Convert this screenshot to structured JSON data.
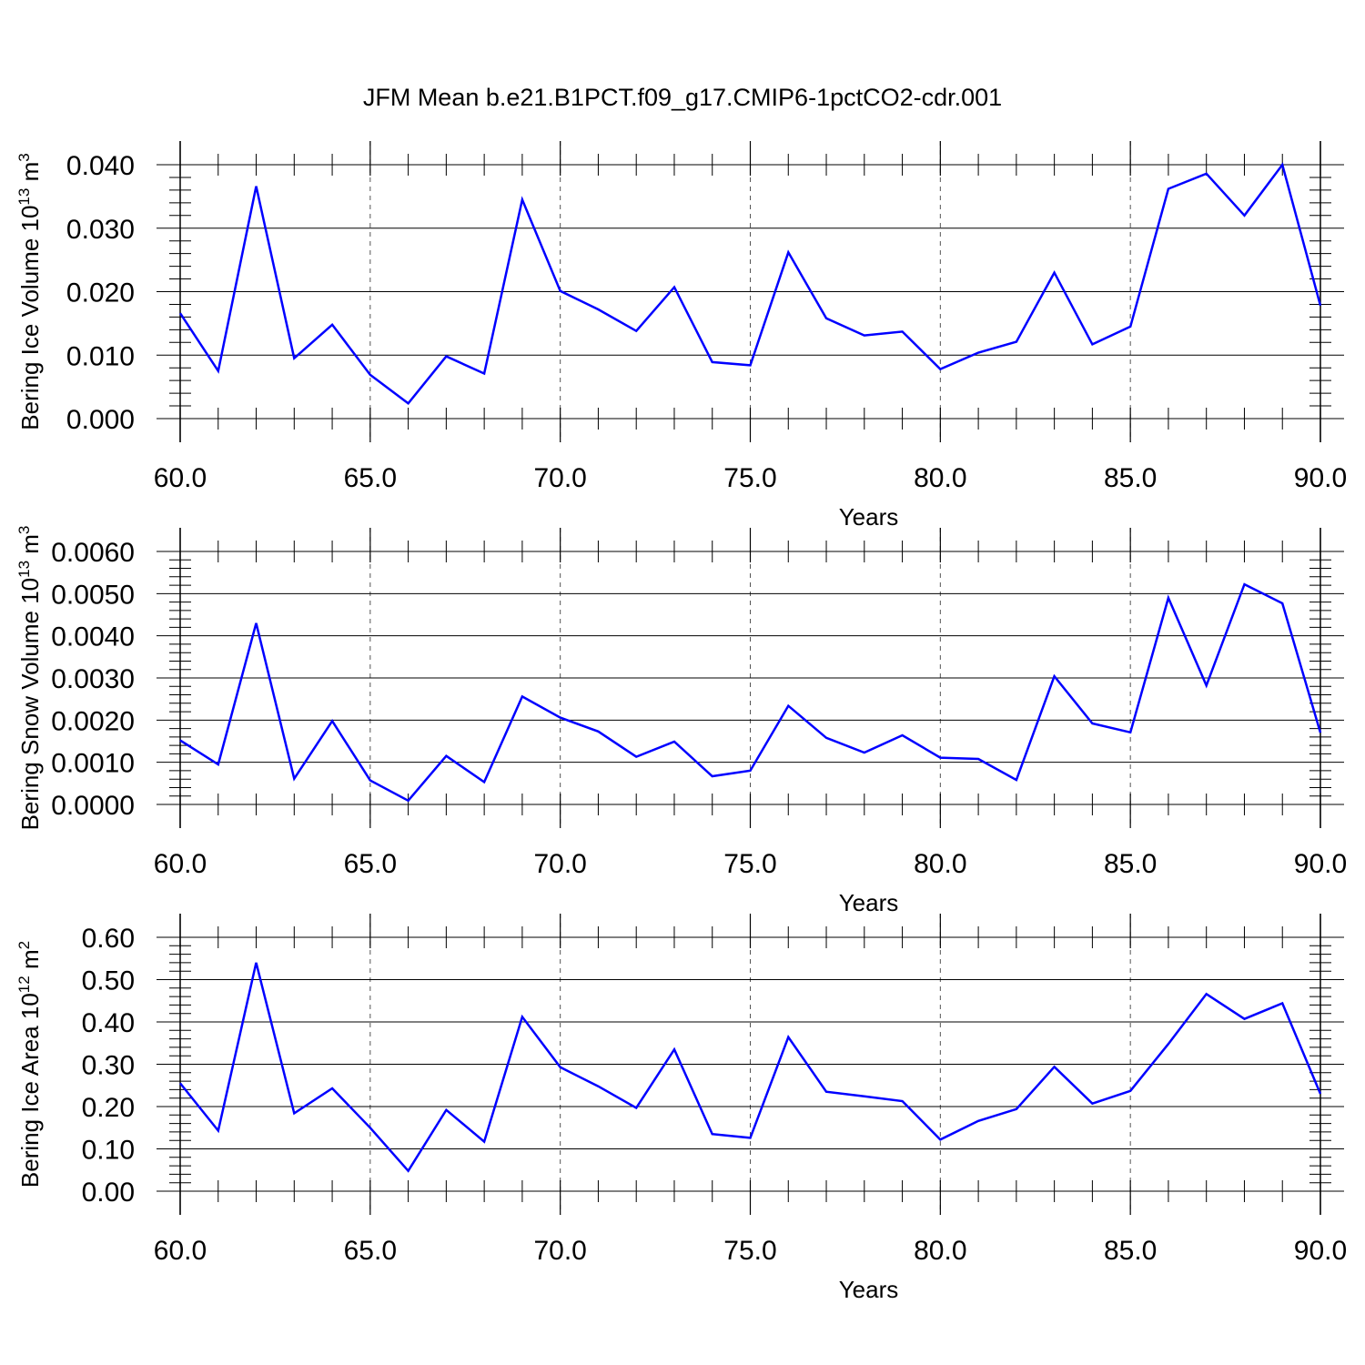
{
  "title": "JFM Mean b.e21.B1PCT.f09_g17.CMIP6-1pctCO2-cdr.001",
  "line_color": "#0000ff",
  "chart_data": [
    {
      "type": "line",
      "xlabel": "Years",
      "ylabel": {
        "text": "Bering Ice Volume 10",
        "sup": "13",
        "unit": " m",
        "unit_sup": "3"
      },
      "xlim": [
        60,
        90
      ],
      "ylim": [
        0,
        0.04
      ],
      "xticks": [
        "60.0",
        "65.0",
        "70.0",
        "75.0",
        "80.0",
        "85.0",
        "90.0"
      ],
      "yticks": [
        "0.000",
        "0.010",
        "0.020",
        "0.030",
        "0.040"
      ],
      "grid": "vertical-dashed",
      "x": [
        60,
        61,
        62,
        63,
        64,
        65,
        66,
        67,
        68,
        69,
        70,
        71,
        72,
        73,
        74,
        75,
        76,
        77,
        78,
        79,
        80,
        81,
        82,
        83,
        84,
        85,
        86,
        87,
        88,
        89,
        90
      ],
      "values": [
        0.0166,
        0.0075,
        0.0366,
        0.0095,
        0.0148,
        0.0069,
        0.0024,
        0.0098,
        0.0071,
        0.0345,
        0.0201,
        0.0172,
        0.0138,
        0.0207,
        0.0089,
        0.0084,
        0.0262,
        0.0158,
        0.0131,
        0.0137,
        0.0078,
        0.0104,
        0.0121,
        0.023,
        0.0117,
        0.0145,
        0.0362,
        0.0386,
        0.032,
        0.04,
        0.0178
      ]
    },
    {
      "type": "line",
      "xlabel": "Years",
      "ylabel": {
        "text": "Bering Snow Volume 10",
        "sup": "13",
        "unit": " m",
        "unit_sup": "3"
      },
      "xlim": [
        60,
        90
      ],
      "ylim": [
        0,
        0.006
      ],
      "xticks": [
        "60.0",
        "65.0",
        "70.0",
        "75.0",
        "80.0",
        "85.0",
        "90.0"
      ],
      "yticks": [
        "0.0000",
        "0.0010",
        "0.0020",
        "0.0030",
        "0.0040",
        "0.0050",
        "0.0060"
      ],
      "grid": "vertical-dashed",
      "x": [
        60,
        61,
        62,
        63,
        64,
        65,
        66,
        67,
        68,
        69,
        70,
        71,
        72,
        73,
        74,
        75,
        76,
        77,
        78,
        79,
        80,
        81,
        82,
        83,
        84,
        85,
        86,
        87,
        88,
        89,
        90
      ],
      "values": [
        0.00152,
        0.00095,
        0.0043,
        0.00061,
        0.00198,
        0.00057,
        9e-05,
        0.00115,
        0.00053,
        0.00256,
        0.00206,
        0.00173,
        0.00113,
        0.00149,
        0.00067,
        0.0008,
        0.00234,
        0.00158,
        0.00123,
        0.00164,
        0.00111,
        0.00108,
        0.00058,
        0.00304,
        0.00192,
        0.00171,
        0.0049,
        0.00282,
        0.00522,
        0.00477,
        0.0017
      ]
    },
    {
      "type": "line",
      "xlabel": "Years",
      "ylabel": {
        "text": "Bering Ice Area 10",
        "sup": "12",
        "unit": " m",
        "unit_sup": "2"
      },
      "xlim": [
        60,
        90
      ],
      "ylim": [
        0,
        0.6
      ],
      "xticks": [
        "60.0",
        "65.0",
        "70.0",
        "75.0",
        "80.0",
        "85.0",
        "90.0"
      ],
      "yticks": [
        "0.00",
        "0.10",
        "0.20",
        "0.30",
        "0.40",
        "0.50",
        "0.60"
      ],
      "grid": "vertical-dashed",
      "x": [
        60,
        61,
        62,
        63,
        64,
        65,
        66,
        67,
        68,
        69,
        70,
        71,
        72,
        73,
        74,
        75,
        76,
        77,
        78,
        79,
        80,
        81,
        82,
        83,
        84,
        85,
        86,
        87,
        88,
        89,
        90
      ],
      "values": [
        0.255,
        0.143,
        0.54,
        0.184,
        0.243,
        0.15,
        0.048,
        0.192,
        0.117,
        0.412,
        0.293,
        0.248,
        0.197,
        0.335,
        0.135,
        0.126,
        0.364,
        0.235,
        0.224,
        0.213,
        0.122,
        0.166,
        0.194,
        0.294,
        0.207,
        0.237,
        0.348,
        0.466,
        0.407,
        0.444,
        0.23
      ]
    }
  ]
}
